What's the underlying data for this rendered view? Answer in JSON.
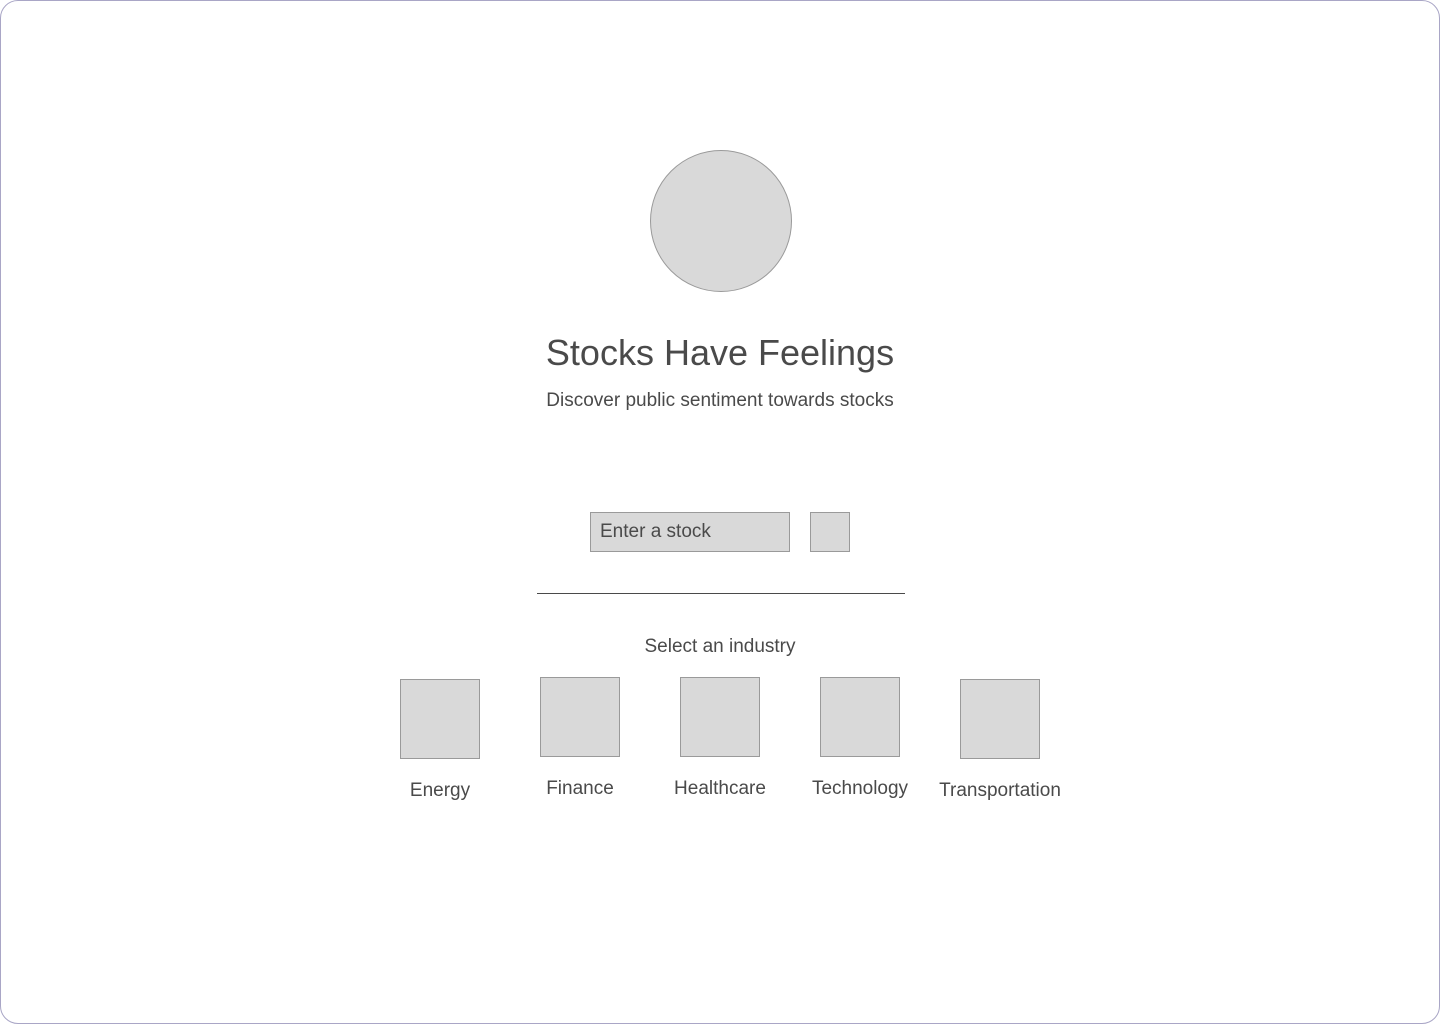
{
  "header": {
    "title": "Stocks Have Feelings",
    "subtitle": "Discover public sentiment towards stocks"
  },
  "search": {
    "placeholder": "Enter a stock",
    "value": ""
  },
  "industries": {
    "heading": "Select an industry",
    "items": [
      {
        "label": "Energy"
      },
      {
        "label": "Finance"
      },
      {
        "label": "Healthcare"
      },
      {
        "label": "Technology"
      },
      {
        "label": "Transportation"
      }
    ]
  },
  "colors": {
    "placeholder_fill": "#d9d9d9",
    "placeholder_border": "#9a9a9a",
    "text": "#4a4a4a",
    "frame_border": "#a9a6c6"
  }
}
